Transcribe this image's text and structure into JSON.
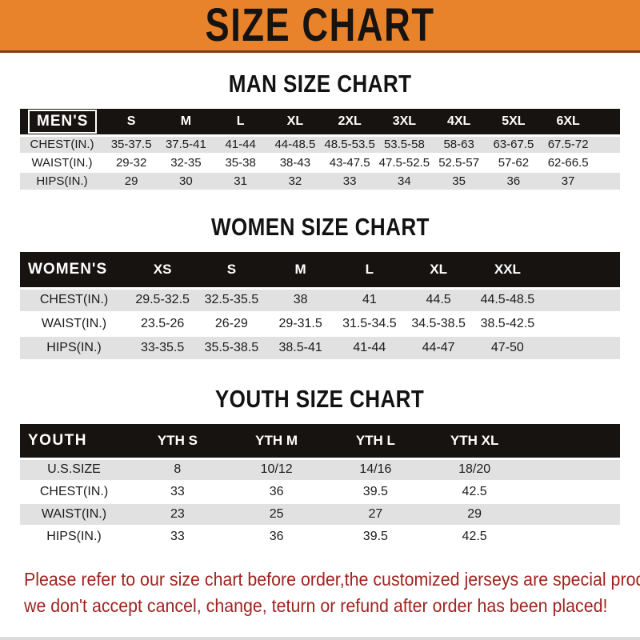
{
  "banner": {
    "title": "SIZE CHART"
  },
  "colors": {
    "banner_bg": "#E8822B",
    "banner_text": "#161310",
    "header_bar_bg": "#171310",
    "header_bar_text": "#FFFFFF",
    "row_stripe": "#E1E1E1",
    "note_text": "#9E241F"
  },
  "sections": [
    {
      "heading": "MAN SIZE CHART",
      "table": {
        "label": "MEN'S",
        "columns": [
          "S",
          "M",
          "L",
          "XL",
          "2XL",
          "3XL",
          "4XL",
          "5XL",
          "6XL"
        ],
        "rows": [
          {
            "label": "CHEST(IN.)",
            "values": [
              "35-37.5",
              "37.5-41",
              "41-44",
              "44-48.5",
              "48.5-53.5",
              "53.5-58",
              "58-63",
              "63-67.5",
              "67.5-72"
            ]
          },
          {
            "label": "WAIST(IN.)",
            "values": [
              "29-32",
              "32-35",
              "35-38",
              "38-43",
              "43-47.5",
              "47.5-52.5",
              "52.5-57",
              "57-62",
              "62-66.5"
            ]
          },
          {
            "label": "HIPS(IN.)",
            "values": [
              "29",
              "30",
              "31",
              "32",
              "33",
              "34",
              "35",
              "36",
              "37"
            ]
          }
        ]
      }
    },
    {
      "heading": "WOMEN SIZE CHART",
      "table": {
        "label": "WOMEN'S",
        "columns": [
          "XS",
          "S",
          "M",
          "L",
          "XL",
          "XXL"
        ],
        "rows": [
          {
            "label": "CHEST(IN.)",
            "values": [
              "29.5-32.5",
              "32.5-35.5",
              "38",
              "41",
              "44.5",
              "44.5-48.5"
            ]
          },
          {
            "label": "WAIST(IN.)",
            "values": [
              "23.5-26",
              "26-29",
              "29-31.5",
              "31.5-34.5",
              "34.5-38.5",
              "38.5-42.5"
            ]
          },
          {
            "label": "HIPS(IN.)",
            "values": [
              "33-35.5",
              "35.5-38.5",
              "38.5-41",
              "41-44",
              "44-47",
              "47-50"
            ]
          }
        ]
      }
    },
    {
      "heading": "YOUTH SIZE CHART",
      "table": {
        "label": "YOUTH",
        "columns": [
          "YTH S",
          "YTH M",
          "YTH L",
          "YTH XL"
        ],
        "rows": [
          {
            "label": "U.S.SIZE",
            "values": [
              "8",
              "10/12",
              "14/16",
              "18/20"
            ]
          },
          {
            "label": "CHEST(IN.)",
            "values": [
              "33",
              "36",
              "39.5",
              "42.5"
            ]
          },
          {
            "label": "WAIST(IN.)",
            "values": [
              "23",
              "25",
              "27",
              "29"
            ]
          },
          {
            "label": "HIPS(IN.)",
            "values": [
              "33",
              "36",
              "39.5",
              "42.5"
            ]
          }
        ]
      }
    }
  ],
  "note": {
    "line1": "Please refer to our size chart before order,the customized jerseys are special products,",
    "line2": "we don't accept cancel, change, teturn or refund after order has been placed!"
  }
}
